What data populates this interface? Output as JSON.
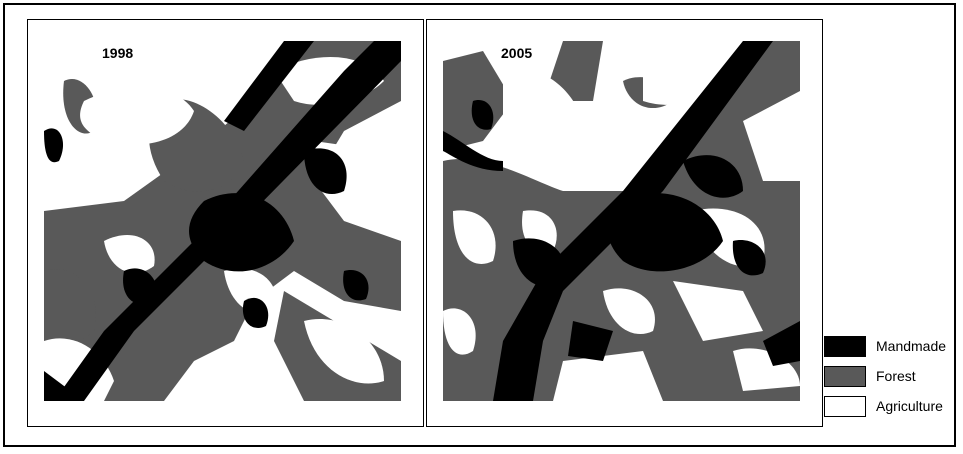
{
  "maps": [
    {
      "year": "1998"
    },
    {
      "year": "2005"
    }
  ],
  "legend": [
    {
      "label": "Mandmade",
      "color": "#000000"
    },
    {
      "label": "Forest",
      "color": "#595959"
    },
    {
      "label": "Agriculture",
      "color": "#ffffff"
    }
  ],
  "colors": {
    "mandmade": "#000000",
    "forest": "#595959",
    "agriculture": "#ffffff",
    "frame": "#000000"
  }
}
